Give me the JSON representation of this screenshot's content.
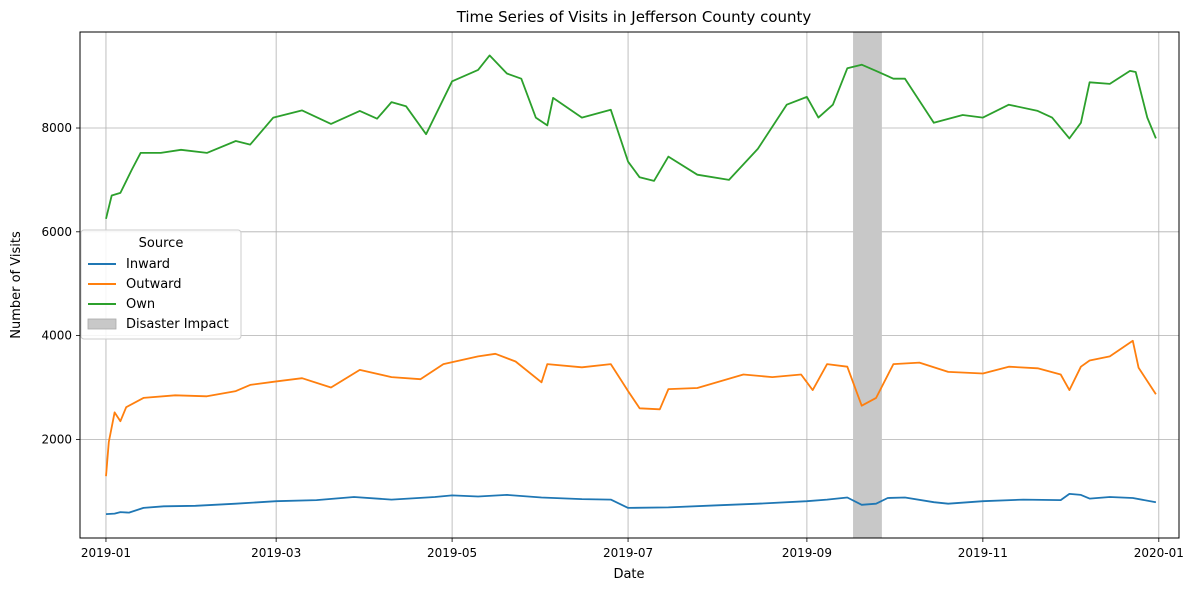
{
  "chart_data": {
    "type": "line",
    "title": "Time Series of Visits in Jefferson County county",
    "xlabel": "Date",
    "ylabel": "Number of Visits",
    "x_range": [
      "2018-12-23",
      "2020-01-08"
    ],
    "ylim": [
      100,
      9850
    ],
    "x_ticks": [
      "2019-01-01",
      "2019-03-01",
      "2019-05-01",
      "2019-07-01",
      "2019-09-01",
      "2019-11-01",
      "2020-01-01"
    ],
    "x_tick_labels": [
      "2019-01",
      "2019-03",
      "2019-05",
      "2019-07",
      "2019-09",
      "2019-11",
      "2020-01"
    ],
    "y_ticks": [
      2000,
      4000,
      6000,
      8000
    ],
    "y_tick_labels": [
      "2000",
      "4000",
      "6000",
      "8000"
    ],
    "grid": true,
    "legend": {
      "title": "Source",
      "placement": "center-left",
      "entries": [
        "Inward",
        "Outward",
        "Own",
        "Disaster Impact"
      ]
    },
    "shaded_regions": [
      {
        "name": "Disaster Impact",
        "start": "2019-09-17",
        "end": "2019-09-27",
        "color": "#c8c8c8"
      }
    ],
    "series": [
      {
        "name": "Inward",
        "color": "#1f77b4",
        "points": [
          [
            "2019-01-01",
            560
          ],
          [
            "2019-01-04",
            570
          ],
          [
            "2019-01-06",
            600
          ],
          [
            "2019-01-09",
            590
          ],
          [
            "2019-01-14",
            680
          ],
          [
            "2019-01-21",
            710
          ],
          [
            "2019-02-01",
            720
          ],
          [
            "2019-02-15",
            760
          ],
          [
            "2019-03-01",
            810
          ],
          [
            "2019-03-15",
            830
          ],
          [
            "2019-03-28",
            890
          ],
          [
            "2019-04-10",
            840
          ],
          [
            "2019-04-25",
            890
          ],
          [
            "2019-05-01",
            920
          ],
          [
            "2019-05-10",
            900
          ],
          [
            "2019-05-20",
            930
          ],
          [
            "2019-06-01",
            880
          ],
          [
            "2019-06-15",
            850
          ],
          [
            "2019-06-25",
            840
          ],
          [
            "2019-07-01",
            680
          ],
          [
            "2019-07-15",
            690
          ],
          [
            "2019-08-01",
            730
          ],
          [
            "2019-08-15",
            760
          ],
          [
            "2019-09-01",
            810
          ],
          [
            "2019-09-08",
            840
          ],
          [
            "2019-09-15",
            880
          ],
          [
            "2019-09-20",
            740
          ],
          [
            "2019-09-25",
            760
          ],
          [
            "2019-09-29",
            870
          ],
          [
            "2019-10-05",
            880
          ],
          [
            "2019-10-15",
            790
          ],
          [
            "2019-10-20",
            760
          ],
          [
            "2019-11-01",
            810
          ],
          [
            "2019-11-15",
            840
          ],
          [
            "2019-11-28",
            830
          ],
          [
            "2019-12-01",
            950
          ],
          [
            "2019-12-05",
            930
          ],
          [
            "2019-12-08",
            860
          ],
          [
            "2019-12-15",
            890
          ],
          [
            "2019-12-23",
            870
          ],
          [
            "2019-12-31",
            790
          ]
        ]
      },
      {
        "name": "Outward",
        "color": "#ff7f0e",
        "points": [
          [
            "2019-01-01",
            1290
          ],
          [
            "2019-01-02",
            1950
          ],
          [
            "2019-01-04",
            2520
          ],
          [
            "2019-01-06",
            2350
          ],
          [
            "2019-01-08",
            2620
          ],
          [
            "2019-01-14",
            2800
          ],
          [
            "2019-01-25",
            2850
          ],
          [
            "2019-02-05",
            2830
          ],
          [
            "2019-02-15",
            2930
          ],
          [
            "2019-02-20",
            3050
          ],
          [
            "2019-02-28",
            3110
          ],
          [
            "2019-03-10",
            3180
          ],
          [
            "2019-03-20",
            3000
          ],
          [
            "2019-03-30",
            3340
          ],
          [
            "2019-04-10",
            3200
          ],
          [
            "2019-04-20",
            3160
          ],
          [
            "2019-04-28",
            3450
          ],
          [
            "2019-05-10",
            3600
          ],
          [
            "2019-05-16",
            3650
          ],
          [
            "2019-05-23",
            3500
          ],
          [
            "2019-06-01",
            3100
          ],
          [
            "2019-06-03",
            3450
          ],
          [
            "2019-06-15",
            3390
          ],
          [
            "2019-06-25",
            3450
          ],
          [
            "2019-07-01",
            2930
          ],
          [
            "2019-07-05",
            2600
          ],
          [
            "2019-07-12",
            2580
          ],
          [
            "2019-07-15",
            2970
          ],
          [
            "2019-07-25",
            2990
          ],
          [
            "2019-08-10",
            3250
          ],
          [
            "2019-08-20",
            3200
          ],
          [
            "2019-08-30",
            3250
          ],
          [
            "2019-09-03",
            2950
          ],
          [
            "2019-09-08",
            3450
          ],
          [
            "2019-09-15",
            3400
          ],
          [
            "2019-09-20",
            2650
          ],
          [
            "2019-09-25",
            2800
          ],
          [
            "2019-10-01",
            3450
          ],
          [
            "2019-10-10",
            3480
          ],
          [
            "2019-10-20",
            3300
          ],
          [
            "2019-11-01",
            3270
          ],
          [
            "2019-11-10",
            3400
          ],
          [
            "2019-11-20",
            3370
          ],
          [
            "2019-11-28",
            3250
          ],
          [
            "2019-12-01",
            2950
          ],
          [
            "2019-12-05",
            3400
          ],
          [
            "2019-12-08",
            3520
          ],
          [
            "2019-12-15",
            3600
          ],
          [
            "2019-12-23",
            3900
          ],
          [
            "2019-12-25",
            3380
          ],
          [
            "2019-12-31",
            2870
          ]
        ]
      },
      {
        "name": "Own",
        "color": "#2ca02c",
        "points": [
          [
            "2019-01-01",
            6250
          ],
          [
            "2019-01-03",
            6700
          ],
          [
            "2019-01-06",
            6750
          ],
          [
            "2019-01-10",
            7200
          ],
          [
            "2019-01-13",
            7520
          ],
          [
            "2019-01-20",
            7520
          ],
          [
            "2019-01-27",
            7580
          ],
          [
            "2019-02-05",
            7520
          ],
          [
            "2019-02-15",
            7750
          ],
          [
            "2019-02-20",
            7680
          ],
          [
            "2019-02-28",
            8200
          ],
          [
            "2019-03-10",
            8340
          ],
          [
            "2019-03-20",
            8080
          ],
          [
            "2019-03-30",
            8330
          ],
          [
            "2019-04-05",
            8180
          ],
          [
            "2019-04-10",
            8500
          ],
          [
            "2019-04-15",
            8420
          ],
          [
            "2019-04-22",
            7880
          ],
          [
            "2019-05-01",
            8900
          ],
          [
            "2019-05-10",
            9120
          ],
          [
            "2019-05-14",
            9400
          ],
          [
            "2019-05-20",
            9050
          ],
          [
            "2019-05-25",
            8950
          ],
          [
            "2019-05-30",
            8200
          ],
          [
            "2019-06-03",
            8050
          ],
          [
            "2019-06-05",
            8580
          ],
          [
            "2019-06-15",
            8200
          ],
          [
            "2019-06-25",
            8350
          ],
          [
            "2019-07-01",
            7350
          ],
          [
            "2019-07-05",
            7050
          ],
          [
            "2019-07-10",
            6980
          ],
          [
            "2019-07-15",
            7450
          ],
          [
            "2019-07-25",
            7100
          ],
          [
            "2019-08-05",
            7000
          ],
          [
            "2019-08-15",
            7600
          ],
          [
            "2019-08-25",
            8450
          ],
          [
            "2019-09-01",
            8600
          ],
          [
            "2019-09-05",
            8200
          ],
          [
            "2019-09-10",
            8450
          ],
          [
            "2019-09-15",
            9150
          ],
          [
            "2019-09-20",
            9220
          ],
          [
            "2019-09-25",
            9100
          ],
          [
            "2019-10-01",
            8950
          ],
          [
            "2019-10-05",
            8950
          ],
          [
            "2019-10-15",
            8100
          ],
          [
            "2019-10-25",
            8250
          ],
          [
            "2019-11-01",
            8200
          ],
          [
            "2019-11-10",
            8450
          ],
          [
            "2019-11-20",
            8330
          ],
          [
            "2019-11-25",
            8200
          ],
          [
            "2019-12-01",
            7800
          ],
          [
            "2019-12-05",
            8100
          ],
          [
            "2019-12-08",
            8880
          ],
          [
            "2019-12-15",
            8850
          ],
          [
            "2019-12-22",
            9100
          ],
          [
            "2019-12-24",
            9080
          ],
          [
            "2019-12-28",
            8200
          ],
          [
            "2019-12-31",
            7800
          ]
        ]
      }
    ]
  }
}
